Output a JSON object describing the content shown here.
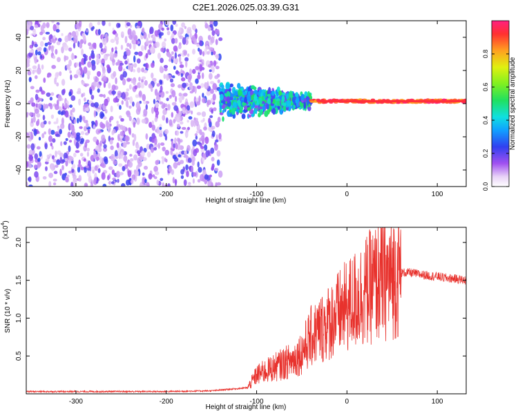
{
  "title": "C2E1.2026.025.03.39.G31",
  "colors": {
    "snr_line": "#e8322d",
    "axis": "#000000"
  },
  "chart_data": [
    {
      "type": "heatmap",
      "xlabel": "Height of straight line (km)",
      "ylabel": "Frequency (Hz)",
      "xlim": [
        -355,
        132
      ],
      "ylim": [
        -50,
        50
      ],
      "x_ticks": [
        -300,
        -200,
        -100,
        0,
        100
      ],
      "y_ticks": [
        -40,
        -20,
        0,
        20,
        40
      ],
      "x_tick_labels": [
        "-300",
        "-200",
        "-100",
        "0",
        "100"
      ],
      "y_tick_labels": [
        "-40",
        "-20",
        "0",
        "20",
        "40"
      ],
      "carrier_frequency": 1.5,
      "description_regions": [
        {
          "x_from": -355,
          "x_to": -140,
          "freq_spread": 50,
          "amplitude": [
            0.05,
            0.25
          ]
        },
        {
          "x_from": -140,
          "x_to": -40,
          "freq_spread": 12,
          "amplitude": [
            0.15,
            0.55
          ]
        },
        {
          "x_from": -40,
          "x_to": 132,
          "freq_spread": 2,
          "amplitude": [
            0.8,
            1.0
          ]
        }
      ],
      "colorbar": {
        "label": "Normalized spectral amplitude",
        "range": [
          0,
          1
        ],
        "ticks": [
          0.0,
          0.2,
          0.4,
          0.6,
          0.8
        ],
        "tick_labels": [
          "0.0",
          "0.2",
          "0.4",
          "0.6",
          "0.8"
        ]
      }
    },
    {
      "type": "line",
      "xlabel": "Height of straight line (km)",
      "ylabel": "SNR (10 * v/v)",
      "y_multiplier_prefix": "(x10",
      "y_multiplier_exp": "4",
      "y_multiplier_suffix": ")",
      "xlim": [
        -355,
        132
      ],
      "ylim": [
        0,
        2.2
      ],
      "x_ticks": [
        -300,
        -200,
        -100,
        0,
        100
      ],
      "y_ticks": [
        0.5,
        1.0,
        1.5,
        2.0
      ],
      "x_tick_labels": [
        "-300",
        "-200",
        "-100",
        "0",
        "100"
      ],
      "y_tick_labels": [
        "0.5",
        "1.0",
        "1.5",
        "2.0"
      ],
      "series": [
        {
          "name": "SNR",
          "x": [
            -355,
            -300,
            -250,
            -200,
            -150,
            -110,
            -100,
            -90,
            -80,
            -70,
            -60,
            -50,
            -40,
            -30,
            -20,
            -10,
            0,
            10,
            20,
            30,
            40,
            50,
            60,
            70,
            80,
            90,
            100,
            110,
            120,
            132
          ],
          "y": [
            0.03,
            0.03,
            0.03,
            0.03,
            0.04,
            0.08,
            0.25,
            0.3,
            0.35,
            0.4,
            0.45,
            0.55,
            0.75,
            0.85,
            0.95,
            1.05,
            1.15,
            1.25,
            1.35,
            1.45,
            1.5,
            1.55,
            1.6,
            1.6,
            1.58,
            1.56,
            1.55,
            1.53,
            1.52,
            1.5
          ]
        }
      ]
    }
  ]
}
